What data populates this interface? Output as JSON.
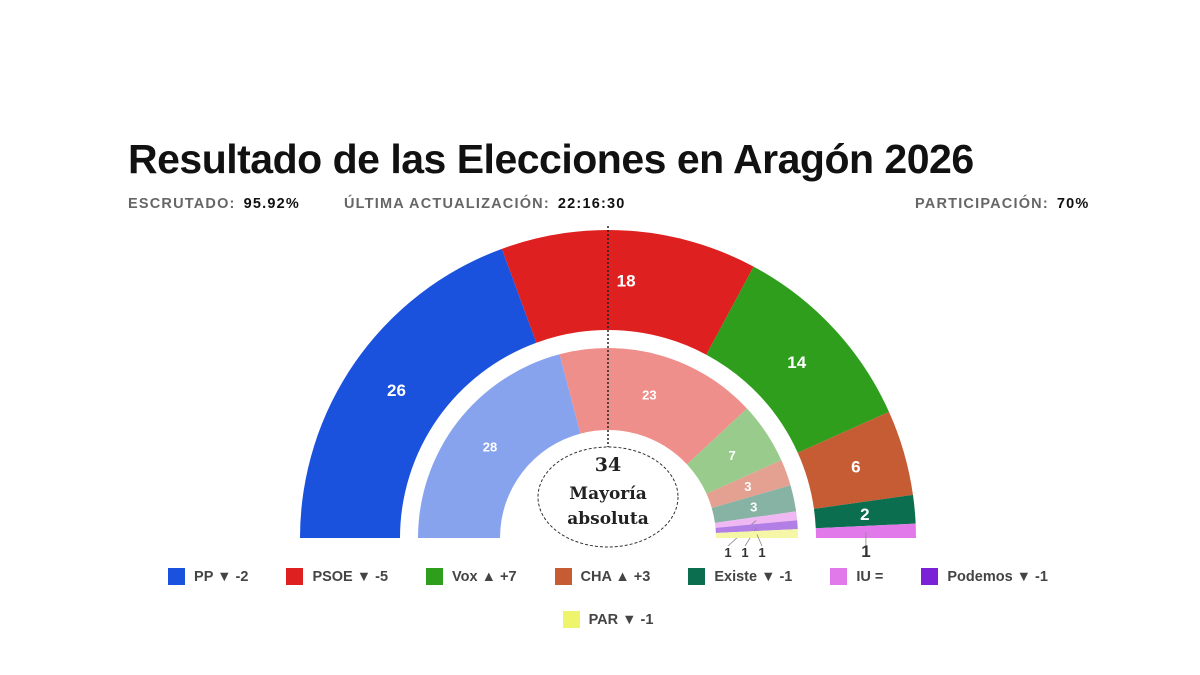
{
  "title": "Resultado de las Elecciones en Aragón 2026",
  "meta": {
    "escrutado_label": "ESCRUTADO:",
    "escrutado_value": "95.92%",
    "actualizacion_label": "ÚLTIMA ACTUALIZACIÓN:",
    "actualizacion_value": "22:16:30",
    "participacion_label": "PARTICIPACIÓN:",
    "participacion_value": "70%"
  },
  "chart_data": {
    "type": "pie",
    "subtype": "parliament-hemicycle",
    "total_seats": 67,
    "majority": {
      "seats": "34",
      "label": "Mayoría absoluta"
    },
    "parties": [
      "PP",
      "PSOE",
      "Vox",
      "CHA",
      "Existe",
      "IU",
      "Podemos",
      "PAR"
    ],
    "series": [
      {
        "ring": "outer",
        "values": [
          26,
          18,
          14,
          6,
          2,
          1,
          0,
          0
        ]
      },
      {
        "ring": "inner",
        "values": [
          28,
          23,
          7,
          3,
          3,
          1,
          1,
          1
        ]
      }
    ],
    "colors": [
      "#1a52de",
      "#df2020",
      "#2f9e1c",
      "#c55c33",
      "#0b6e4f",
      "#e279ea",
      "#7b22d6",
      "#eef56c"
    ],
    "inner_colors": [
      "#88a3ee",
      "#ef8f8b",
      "#99cc8c",
      "#e4a090",
      "#86b3a3",
      "#efb8f2",
      "#b17fe6",
      "#f5f7a6"
    ],
    "legend": [
      {
        "party": "PP",
        "arrow": "▼",
        "change": "-2"
      },
      {
        "party": "PSOE",
        "arrow": "▼",
        "change": "-5"
      },
      {
        "party": "Vox",
        "arrow": "▲",
        "change": "+7"
      },
      {
        "party": "CHA",
        "arrow": "▲",
        "change": "+3"
      },
      {
        "party": "Existe",
        "arrow": "▼",
        "change": "-1"
      },
      {
        "party": "IU",
        "arrow": "",
        "change": "="
      },
      {
        "party": "Podemos",
        "arrow": "▼",
        "change": "-1"
      },
      {
        "party": "PAR",
        "arrow": "▼",
        "change": "-1"
      }
    ]
  }
}
